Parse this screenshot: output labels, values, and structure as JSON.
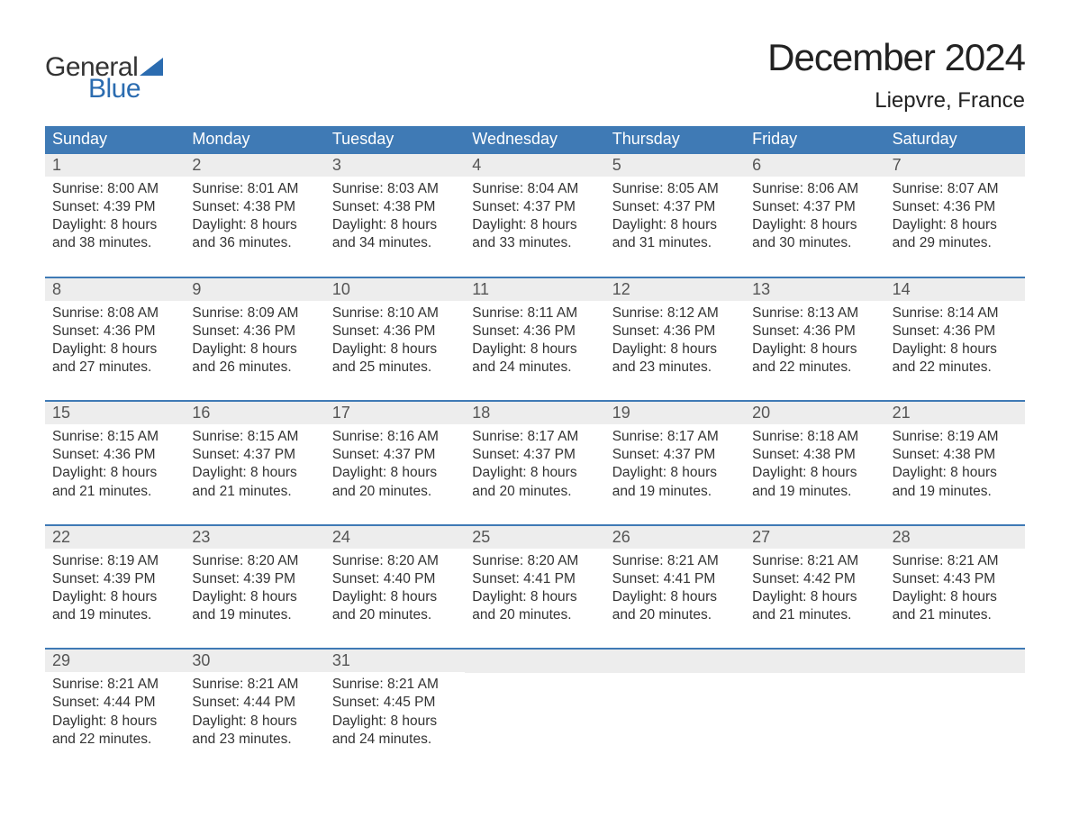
{
  "logo": {
    "text_general": "General",
    "text_blue": "Blue",
    "wedge_color": "#2b6cb0"
  },
  "title": "December 2024",
  "location": "Liepvre, France",
  "colors": {
    "header_bg": "#3f7ab5",
    "header_text": "#ffffff",
    "daynum_bg": "#ededed",
    "daynum_text": "#555555",
    "body_text": "#333333",
    "week_border": "#3f7ab5"
  },
  "weekdays": [
    "Sunday",
    "Monday",
    "Tuesday",
    "Wednesday",
    "Thursday",
    "Friday",
    "Saturday"
  ],
  "weeks": [
    [
      {
        "n": "1",
        "sunrise": "Sunrise: 8:00 AM",
        "sunset": "Sunset: 4:39 PM",
        "dl1": "Daylight: 8 hours",
        "dl2": "and 38 minutes."
      },
      {
        "n": "2",
        "sunrise": "Sunrise: 8:01 AM",
        "sunset": "Sunset: 4:38 PM",
        "dl1": "Daylight: 8 hours",
        "dl2": "and 36 minutes."
      },
      {
        "n": "3",
        "sunrise": "Sunrise: 8:03 AM",
        "sunset": "Sunset: 4:38 PM",
        "dl1": "Daylight: 8 hours",
        "dl2": "and 34 minutes."
      },
      {
        "n": "4",
        "sunrise": "Sunrise: 8:04 AM",
        "sunset": "Sunset: 4:37 PM",
        "dl1": "Daylight: 8 hours",
        "dl2": "and 33 minutes."
      },
      {
        "n": "5",
        "sunrise": "Sunrise: 8:05 AM",
        "sunset": "Sunset: 4:37 PM",
        "dl1": "Daylight: 8 hours",
        "dl2": "and 31 minutes."
      },
      {
        "n": "6",
        "sunrise": "Sunrise: 8:06 AM",
        "sunset": "Sunset: 4:37 PM",
        "dl1": "Daylight: 8 hours",
        "dl2": "and 30 minutes."
      },
      {
        "n": "7",
        "sunrise": "Sunrise: 8:07 AM",
        "sunset": "Sunset: 4:36 PM",
        "dl1": "Daylight: 8 hours",
        "dl2": "and 29 minutes."
      }
    ],
    [
      {
        "n": "8",
        "sunrise": "Sunrise: 8:08 AM",
        "sunset": "Sunset: 4:36 PM",
        "dl1": "Daylight: 8 hours",
        "dl2": "and 27 minutes."
      },
      {
        "n": "9",
        "sunrise": "Sunrise: 8:09 AM",
        "sunset": "Sunset: 4:36 PM",
        "dl1": "Daylight: 8 hours",
        "dl2": "and 26 minutes."
      },
      {
        "n": "10",
        "sunrise": "Sunrise: 8:10 AM",
        "sunset": "Sunset: 4:36 PM",
        "dl1": "Daylight: 8 hours",
        "dl2": "and 25 minutes."
      },
      {
        "n": "11",
        "sunrise": "Sunrise: 8:11 AM",
        "sunset": "Sunset: 4:36 PM",
        "dl1": "Daylight: 8 hours",
        "dl2": "and 24 minutes."
      },
      {
        "n": "12",
        "sunrise": "Sunrise: 8:12 AM",
        "sunset": "Sunset: 4:36 PM",
        "dl1": "Daylight: 8 hours",
        "dl2": "and 23 minutes."
      },
      {
        "n": "13",
        "sunrise": "Sunrise: 8:13 AM",
        "sunset": "Sunset: 4:36 PM",
        "dl1": "Daylight: 8 hours",
        "dl2": "and 22 minutes."
      },
      {
        "n": "14",
        "sunrise": "Sunrise: 8:14 AM",
        "sunset": "Sunset: 4:36 PM",
        "dl1": "Daylight: 8 hours",
        "dl2": "and 22 minutes."
      }
    ],
    [
      {
        "n": "15",
        "sunrise": "Sunrise: 8:15 AM",
        "sunset": "Sunset: 4:36 PM",
        "dl1": "Daylight: 8 hours",
        "dl2": "and 21 minutes."
      },
      {
        "n": "16",
        "sunrise": "Sunrise: 8:15 AM",
        "sunset": "Sunset: 4:37 PM",
        "dl1": "Daylight: 8 hours",
        "dl2": "and 21 minutes."
      },
      {
        "n": "17",
        "sunrise": "Sunrise: 8:16 AM",
        "sunset": "Sunset: 4:37 PM",
        "dl1": "Daylight: 8 hours",
        "dl2": "and 20 minutes."
      },
      {
        "n": "18",
        "sunrise": "Sunrise: 8:17 AM",
        "sunset": "Sunset: 4:37 PM",
        "dl1": "Daylight: 8 hours",
        "dl2": "and 20 minutes."
      },
      {
        "n": "19",
        "sunrise": "Sunrise: 8:17 AM",
        "sunset": "Sunset: 4:37 PM",
        "dl1": "Daylight: 8 hours",
        "dl2": "and 19 minutes."
      },
      {
        "n": "20",
        "sunrise": "Sunrise: 8:18 AM",
        "sunset": "Sunset: 4:38 PM",
        "dl1": "Daylight: 8 hours",
        "dl2": "and 19 minutes."
      },
      {
        "n": "21",
        "sunrise": "Sunrise: 8:19 AM",
        "sunset": "Sunset: 4:38 PM",
        "dl1": "Daylight: 8 hours",
        "dl2": "and 19 minutes."
      }
    ],
    [
      {
        "n": "22",
        "sunrise": "Sunrise: 8:19 AM",
        "sunset": "Sunset: 4:39 PM",
        "dl1": "Daylight: 8 hours",
        "dl2": "and 19 minutes."
      },
      {
        "n": "23",
        "sunrise": "Sunrise: 8:20 AM",
        "sunset": "Sunset: 4:39 PM",
        "dl1": "Daylight: 8 hours",
        "dl2": "and 19 minutes."
      },
      {
        "n": "24",
        "sunrise": "Sunrise: 8:20 AM",
        "sunset": "Sunset: 4:40 PM",
        "dl1": "Daylight: 8 hours",
        "dl2": "and 20 minutes."
      },
      {
        "n": "25",
        "sunrise": "Sunrise: 8:20 AM",
        "sunset": "Sunset: 4:41 PM",
        "dl1": "Daylight: 8 hours",
        "dl2": "and 20 minutes."
      },
      {
        "n": "26",
        "sunrise": "Sunrise: 8:21 AM",
        "sunset": "Sunset: 4:41 PM",
        "dl1": "Daylight: 8 hours",
        "dl2": "and 20 minutes."
      },
      {
        "n": "27",
        "sunrise": "Sunrise: 8:21 AM",
        "sunset": "Sunset: 4:42 PM",
        "dl1": "Daylight: 8 hours",
        "dl2": "and 21 minutes."
      },
      {
        "n": "28",
        "sunrise": "Sunrise: 8:21 AM",
        "sunset": "Sunset: 4:43 PM",
        "dl1": "Daylight: 8 hours",
        "dl2": "and 21 minutes."
      }
    ],
    [
      {
        "n": "29",
        "sunrise": "Sunrise: 8:21 AM",
        "sunset": "Sunset: 4:44 PM",
        "dl1": "Daylight: 8 hours",
        "dl2": "and 22 minutes."
      },
      {
        "n": "30",
        "sunrise": "Sunrise: 8:21 AM",
        "sunset": "Sunset: 4:44 PM",
        "dl1": "Daylight: 8 hours",
        "dl2": "and 23 minutes."
      },
      {
        "n": "31",
        "sunrise": "Sunrise: 8:21 AM",
        "sunset": "Sunset: 4:45 PM",
        "dl1": "Daylight: 8 hours",
        "dl2": "and 24 minutes."
      },
      null,
      null,
      null,
      null
    ]
  ]
}
